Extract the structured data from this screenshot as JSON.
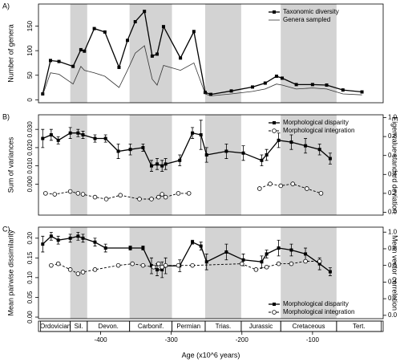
{
  "chart_data": [
    {
      "type": "line",
      "panel_label": "A)",
      "ylabel": "Number of genera",
      "xlim": [
        -488,
        0
      ],
      "ylim": [
        -6,
        195
      ],
      "yticks": [
        0,
        50,
        100,
        150
      ],
      "legend": "top-right",
      "series": [
        {
          "name": "Taxonomic diversity",
          "color": "#000000",
          "marker": "square",
          "line_width": 1.3,
          "x": [
            -482,
            -471,
            -459,
            -439,
            -428,
            -423,
            -409,
            -394,
            -374,
            -362,
            -351,
            -338,
            -327,
            -320,
            -311,
            -287,
            -268,
            -252,
            -244,
            -215,
            -185,
            -167,
            -151,
            -143,
            -123,
            -100,
            -80,
            -57,
            -30
          ],
          "values": [
            12,
            80,
            78,
            68,
            102,
            99,
            145,
            138,
            66,
            121,
            159,
            180,
            89,
            93,
            149,
            85,
            139,
            15,
            11,
            18,
            26,
            34,
            48,
            44,
            31,
            31,
            30,
            20,
            16
          ]
        },
        {
          "name": "Genera sampled",
          "color": "#333333",
          "marker": "none",
          "line_width": 0.8,
          "x": [
            -482,
            -471,
            -459,
            -439,
            -428,
            -423,
            -409,
            -394,
            -374,
            -362,
            -351,
            -338,
            -327,
            -320,
            -311,
            -287,
            -268,
            -252,
            -244,
            -215,
            -185,
            -167,
            -151,
            -143,
            -123,
            -100,
            -80,
            -57,
            -30
          ],
          "values": [
            10,
            55,
            52,
            32,
            68,
            60,
            55,
            48,
            25,
            60,
            95,
            110,
            42,
            30,
            70,
            60,
            75,
            12,
            8,
            12,
            17,
            22,
            32,
            30,
            22,
            24,
            22,
            12,
            10
          ]
        }
      ]
    },
    {
      "type": "line",
      "panel_label": "B)",
      "ylabel": "Sum of variances",
      "y2label": "Eigenvalue standard deviation",
      "xlim": [
        -488,
        0
      ],
      "ylim": [
        -0.017,
        0.038
      ],
      "yticks": [
        {
          "value": 0,
          "label": "0.000"
        },
        {
          "value": 0.01,
          "label": "0.010"
        },
        {
          "value": 0.02,
          "label": "0.020"
        },
        {
          "value": 0.03,
          "label": "0.030"
        }
      ],
      "y2lim": [
        -0.03,
        1.03
      ],
      "y2ticks": [
        {
          "value": 0,
          "label": "0.0"
        },
        0.2,
        0.4,
        0.6,
        0.8,
        {
          "value": 1,
          "label": "1.0"
        }
      ],
      "legend": "top-right",
      "series": [
        {
          "name": "Morphological disparity",
          "color": "#000000",
          "marker": "square",
          "line_width": 1.3,
          "x": [
            -482,
            -470,
            -460,
            -443,
            -432,
            -425,
            -408,
            -393,
            -375,
            -358,
            -340,
            -328,
            -320,
            -313,
            -308,
            -288,
            -270,
            -258,
            -250,
            -222,
            -198,
            -172,
            -165,
            -148,
            -130,
            -110,
            -90,
            -75
          ],
          "values": [
            0.025,
            0.027,
            0.024,
            0.028,
            0.028,
            0.027,
            0.025,
            0.025,
            0.018,
            0.019,
            0.02,
            0.01,
            0.011,
            0.01,
            0.011,
            0.013,
            0.028,
            0.027,
            0.016,
            0.018,
            0.017,
            0.013,
            0.016,
            0.024,
            0.023,
            0.021,
            0.019,
            0.014
          ],
          "errors": [
            0.005,
            0.003,
            0.002,
            0.003,
            0.002,
            0.002,
            0.002,
            0.002,
            0.004,
            0.003,
            0.002,
            0.003,
            0.003,
            0.003,
            0.003,
            0.003,
            0.003,
            0.008,
            0.004,
            0.004,
            0.004,
            0.003,
            0.003,
            0.004,
            0.004,
            0.004,
            0.003,
            0.003
          ]
        },
        {
          "name": "Morphological integration",
          "color": "#000000",
          "marker": "circle",
          "dash": "3,2",
          "line_width": 0.9,
          "axis": "y2",
          "x": [
            -478,
            -465,
            -443,
            -432,
            -425,
            -408,
            -392,
            -372,
            -345,
            -328,
            -318,
            -313,
            -308,
            -290,
            -275,
            -220,
            -175,
            -160,
            -145,
            -128,
            -108,
            -88
          ],
          "values": [
            0.2,
            0.19,
            0.22,
            0.2,
            0.19,
            0.16,
            0.14,
            0.18,
            0.14,
            0.14,
            0.16,
            0.19,
            0.16,
            0.2,
            0.2,
            null,
            0.25,
            0.3,
            0.28,
            0.3,
            0.25,
            0.2
          ]
        }
      ]
    },
    {
      "type": "line",
      "panel_label": "C)",
      "ylabel": "Mean pairwise dissimilarity",
      "y2label": "Mean vector correlation",
      "xlabel": "Age (x10^6 years)",
      "xlim": [
        -488,
        0
      ],
      "xticks": [
        -400,
        -300,
        -200,
        -100
      ],
      "ylim": [
        -0.004,
        0.228
      ],
      "yticks": [
        {
          "value": 0,
          "label": "0.00"
        },
        {
          "value": 0.05,
          "label": "0.05"
        },
        {
          "value": 0.1,
          "label": "0.10"
        },
        {
          "value": 0.15,
          "label": "0.15"
        },
        {
          "value": 0.2,
          "label": "0.20"
        }
      ],
      "y2lim": [
        -0.04,
        1.06
      ],
      "y2ticks": [
        {
          "value": 0,
          "label": "0.0"
        },
        0.2,
        0.4,
        0.6,
        0.8,
        {
          "value": 1,
          "label": "1.0"
        }
      ],
      "legend": "bottom-right",
      "periods": [
        {
          "name": "Ordovician",
          "start": -485,
          "end": -443,
          "shaded": false
        },
        {
          "name": "Sil.",
          "start": -443,
          "end": -419,
          "shaded": true
        },
        {
          "name": "Devon.",
          "start": -419,
          "end": -359,
          "shaded": false
        },
        {
          "name": "Carbonif.",
          "start": -359,
          "end": -299,
          "shaded": true
        },
        {
          "name": "Permian",
          "start": -299,
          "end": -252,
          "shaded": false
        },
        {
          "name": "Trias.",
          "start": -252,
          "end": -201,
          "shaded": true
        },
        {
          "name": "Jurassic",
          "start": -201,
          "end": -145,
          "shaded": false
        },
        {
          "name": "Cretaceous",
          "start": -145,
          "end": -66,
          "shaded": true
        },
        {
          "name": "Tert.",
          "start": -66,
          "end": -2.6,
          "shaded": false
        }
      ],
      "series": [
        {
          "name": "Morphological disparity",
          "color": "#000000",
          "marker": "square",
          "line_width": 1.3,
          "x": [
            -482,
            -470,
            -460,
            -443,
            -432,
            -425,
            -408,
            -393,
            -358,
            -340,
            -328,
            -320,
            -313,
            -308,
            -288,
            -270,
            -258,
            -250,
            -222,
            -198,
            -172,
            -165,
            -148,
            -130,
            -110,
            -90,
            -75
          ],
          "values": [
            0.185,
            0.205,
            0.195,
            0.2,
            0.205,
            0.2,
            0.19,
            0.175,
            0.175,
            0.175,
            0.13,
            0.12,
            0.12,
            0.13,
            0.13,
            0.19,
            0.18,
            0.14,
            0.165,
            0.145,
            0.14,
            0.16,
            0.175,
            0.17,
            0.16,
            0.135,
            0.115
          ],
          "errors": [
            0.02,
            0.01,
            0.01,
            0.01,
            0.01,
            0.01,
            0.01,
            0.01,
            0.005,
            0.005,
            0.02,
            0.015,
            0.02,
            0.02,
            0.015,
            0.005,
            0.01,
            0.02,
            0.02,
            0.015,
            0.015,
            0.01,
            0.02,
            0.015,
            0.015,
            0.015,
            0.01
          ]
        },
        {
          "name": "Morphological integration",
          "color": "#000000",
          "marker": "circle",
          "dash": "3,2",
          "line_width": 0.9,
          "axis": "y2",
          "x": [
            -470,
            -460,
            -443,
            -432,
            -425,
            -408,
            -375,
            -355,
            -340,
            -325,
            -318,
            -313,
            -308,
            -290,
            -270,
            -200,
            -180,
            -165,
            -148,
            -130,
            -110,
            -90
          ],
          "values": [
            0.6,
            0.62,
            0.55,
            0.5,
            0.52,
            0.55,
            0.6,
            0.62,
            0.6,
            0.58,
            0.62,
            0.58,
            0.6,
            0.6,
            0.6,
            0.62,
            0.55,
            0.58,
            0.62,
            0.62,
            0.65,
            0.65
          ]
        }
      ]
    }
  ]
}
